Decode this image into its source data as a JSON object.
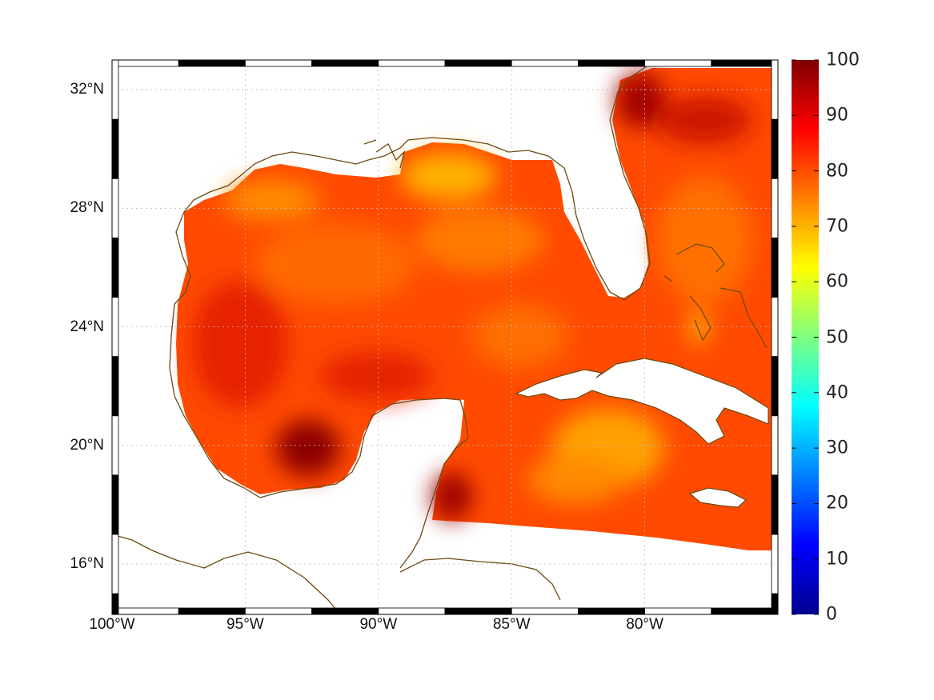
{
  "map": {
    "projection": "equirectangular",
    "lon_range": [
      -100,
      -75
    ],
    "lat_range": [
      14.3,
      33
    ],
    "lat_ticks": [
      {
        "value": 32,
        "label": "32°N"
      },
      {
        "value": 28,
        "label": "28°N"
      },
      {
        "value": 24,
        "label": "24°N"
      },
      {
        "value": 20,
        "label": "20°N"
      },
      {
        "value": 16,
        "label": "16°N"
      }
    ],
    "lon_ticks": [
      {
        "value": -100,
        "label": "100°W"
      },
      {
        "value": -95,
        "label": "95°W"
      },
      {
        "value": -90,
        "label": "90°W"
      },
      {
        "value": -85,
        "label": "85°W"
      },
      {
        "value": -80,
        "label": "80°W"
      }
    ],
    "grid": true,
    "coastline_color": "#6b4a10",
    "land_color": "#ffffff",
    "field_colors": {
      "low": "#ff8800",
      "mid": "#ff3300",
      "high": "#8b0000",
      "bright": "#ffd000"
    }
  },
  "colorbar": {
    "min": 0,
    "max": 100,
    "ticks": [
      "100",
      "90",
      "80",
      "70",
      "60",
      "50",
      "40",
      "30",
      "20",
      "10",
      "0"
    ],
    "colormap": "jet"
  }
}
